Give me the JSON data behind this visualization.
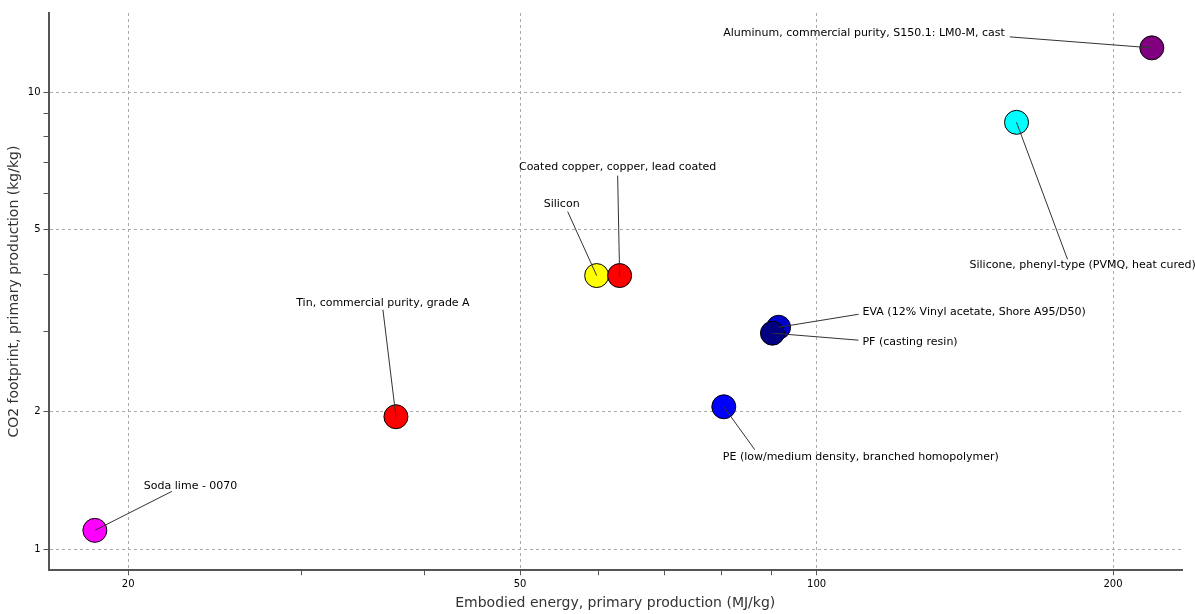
{
  "chart_data": {
    "type": "scatter",
    "xlabel": "Embodied energy, primary production (MJ/kg)",
    "ylabel": "CO2 footprint, primary production (kg/kg)",
    "log": "xy",
    "grid": true,
    "legend": false,
    "marker": "circle",
    "xlim": [
      16.6,
      235
    ],
    "ylim": [
      0.9,
      14.9
    ],
    "xticks": [
      20,
      {
        "value": 30,
        "label": null
      },
      {
        "value": 40,
        "label": null
      },
      50,
      {
        "value": 60,
        "label": null
      },
      {
        "value": 70,
        "label": null
      },
      {
        "value": 80,
        "label": null
      },
      {
        "value": 90,
        "label": null
      },
      100,
      200
    ],
    "yticks": [
      1,
      2,
      {
        "value": 3,
        "label": null
      },
      {
        "value": 4,
        "label": null
      },
      5,
      {
        "value": 6,
        "label": null
      },
      {
        "value": 7,
        "label": null
      },
      {
        "value": 8,
        "label": null
      },
      {
        "value": 9,
        "label": null
      },
      10
    ],
    "x": [
      18.5,
      37.4,
      59.8,
      63.1,
      80.5,
      91.5,
      90.2,
      159.6,
      219
    ],
    "values": [
      1.1,
      1.95,
      3.97,
      3.97,
      2.05,
      3.06,
      2.97,
      8.59,
      12.5
    ],
    "colors": [
      "#ff00ff",
      "#ff0000",
      "#ffff00",
      "#ff0000",
      "#0000ff",
      "#0000cc",
      "#000080",
      "#00ffff",
      "#800080"
    ],
    "annotations": [
      {
        "text": "Soda lime - 0070",
        "x": 18.5,
        "y": 1.1
      },
      {
        "text": "Tin, commercial purity, grade A",
        "x": 37.4,
        "y": 1.95
      },
      {
        "text": "Silicon",
        "x": 59.8,
        "y": 3.97
      },
      {
        "text": "Coated copper, copper, lead coated",
        "x": 63.1,
        "y": 3.97
      },
      {
        "text": "PE (low/medium density, branched homopolymer)",
        "x": 80.5,
        "y": 2.05
      },
      {
        "text": "EVA (12% Vinyl acetate, Shore A95/D50)",
        "x": 91.5,
        "y": 3.06
      },
      {
        "text": "PF (casting resin)",
        "x": 90.2,
        "y": 2.97
      },
      {
        "text": "Silicone, phenyl-type (PVMQ, heat cured)",
        "x": 159.6,
        "y": 8.59
      },
      {
        "text": "Aluminum, commercial purity, S150.1: LM0-M, cast",
        "x": 219,
        "y": 12.5
      }
    ]
  }
}
